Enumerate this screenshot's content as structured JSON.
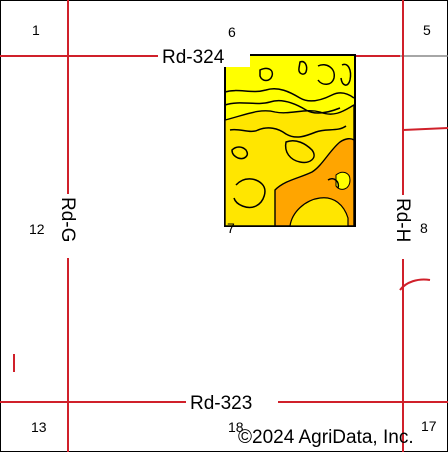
{
  "map": {
    "roads": {
      "rd_324": "Rd-324",
      "rd_323": "Rd-323",
      "rd_g": "Rd-G",
      "rd_h": "Rd-H"
    },
    "sections": {
      "s1": "1",
      "s5": "5",
      "s6": "6",
      "s7": "7",
      "s8": "8",
      "s12": "12",
      "s13": "13",
      "s17": "17",
      "s18": "18"
    },
    "copyright": "©2024 AgriData, Inc.",
    "colors": {
      "road": "#d0202a",
      "boundary": "#000000",
      "soil_light": "#ffff00",
      "soil_mid": "#ffe600",
      "soil_orange": "#ffa500",
      "gray_line": "#888888"
    }
  }
}
